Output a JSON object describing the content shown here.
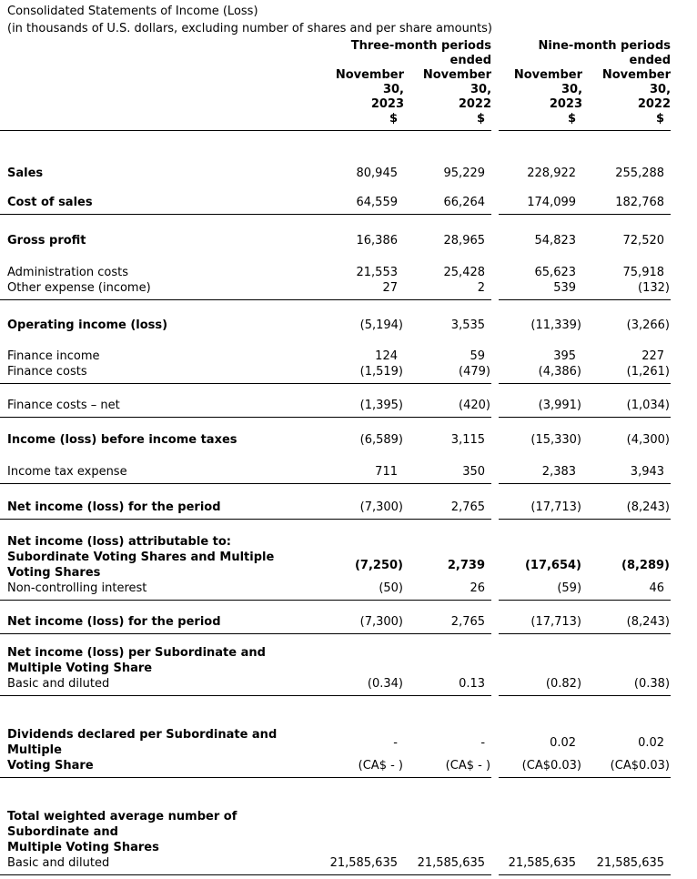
{
  "title": "Consolidated Statements of Income (Loss)",
  "subtitle": "(in thousands of U.S. dollars, excluding number of shares and per share amounts)",
  "colors": {
    "text": "#000000",
    "background": "#ffffff",
    "rule": "#000000"
  },
  "table": {
    "header": {
      "group_left_lines": [
        "Three-month periods",
        "ended"
      ],
      "group_right_lines": [
        "Nine-month periods",
        "ended"
      ],
      "columns": [
        {
          "lines": [
            "November",
            "30,",
            "2023"
          ],
          "currency": "$"
        },
        {
          "lines": [
            "November",
            "30,",
            "2022"
          ],
          "currency": "$"
        },
        {
          "lines": [
            "November",
            "30,",
            "2023"
          ],
          "currency": "$"
        },
        {
          "lines": [
            "November",
            "30,",
            "2022"
          ],
          "currency": "$"
        }
      ]
    },
    "rows": [
      {
        "label_lines": [
          "Sales"
        ],
        "bold": true,
        "values": [
          "80,945",
          "95,229",
          "228,922",
          "255,288"
        ],
        "values_bold": false,
        "underline": false,
        "gap": 38
      },
      {
        "label_lines": [
          "Cost of sales"
        ],
        "bold": true,
        "values": [
          "64,559",
          "66,264",
          "174,099",
          "182,768"
        ],
        "values_bold": false,
        "underline": true,
        "gap": 15
      },
      {
        "label_lines": [
          "Gross profit"
        ],
        "bold": true,
        "values": [
          "16,386",
          "28,965",
          "54,823",
          "72,520"
        ],
        "values_bold": false,
        "underline": false,
        "gap": 20
      },
      {
        "label_lines": [
          "Administration costs"
        ],
        "bold": false,
        "values": [
          "21,553",
          "25,428",
          "65,623",
          "75,918"
        ],
        "values_bold": false,
        "underline": false,
        "gap": 18
      },
      {
        "label_lines": [
          "Other expense (income)"
        ],
        "bold": false,
        "values": [
          "27",
          "2",
          "539",
          "(132)"
        ],
        "values_bold": false,
        "underline": true,
        "gap": 0
      },
      {
        "label_lines": [
          "Operating income (loss)"
        ],
        "bold": true,
        "values": [
          "(5,194)",
          "3,535",
          "(11,339)",
          "(3,266)"
        ],
        "values_bold": false,
        "underline": false,
        "gap": 19
      },
      {
        "label_lines": [
          "Finance income"
        ],
        "bold": false,
        "values": [
          "124",
          "59",
          "395",
          "227"
        ],
        "values_bold": false,
        "underline": false,
        "gap": 17
      },
      {
        "label_lines": [
          "Finance costs"
        ],
        "bold": false,
        "values": [
          "(1,519)",
          "(479)",
          "(4,386)",
          "(1,261)"
        ],
        "values_bold": false,
        "underline": true,
        "gap": 0
      },
      {
        "label_lines": [
          "Finance costs – net"
        ],
        "bold": false,
        "values": [
          "(1,395)",
          "(420)",
          "(3,991)",
          "(1,034)"
        ],
        "values_bold": false,
        "underline": true,
        "gap": 15
      },
      {
        "label_lines": [
          "Income (loss) before income taxes"
        ],
        "bold": true,
        "values": [
          "(6,589)",
          "3,115",
          "(15,330)",
          "(4,300)"
        ],
        "values_bold": false,
        "underline": false,
        "gap": 16
      },
      {
        "label_lines": [
          "Income tax expense"
        ],
        "bold": false,
        "values": [
          "711",
          "350",
          "2,383",
          "3,943"
        ],
        "values_bold": false,
        "underline": true,
        "gap": 18
      },
      {
        "label_lines": [
          "Net income (loss) for the period"
        ],
        "bold": true,
        "values": [
          "(7,300)",
          "2,765",
          "(17,713)",
          "(8,243)"
        ],
        "values_bold": false,
        "underline": true,
        "gap": 17
      },
      {
        "label_lines": [
          "Net income (loss) attributable to:"
        ],
        "bold": true,
        "values": [
          "",
          "",
          "",
          ""
        ],
        "values_bold": false,
        "underline": false,
        "gap": 16
      },
      {
        "label_lines": [
          "Subordinate Voting Shares and Multiple",
          "Voting Shares"
        ],
        "bold": true,
        "values": [
          "(7,250)",
          "2,739",
          "(17,654)",
          "(8,289)"
        ],
        "values_bold": true,
        "underline": false,
        "gap": 0
      },
      {
        "label_lines": [
          "Non-controlling interest"
        ],
        "bold": false,
        "values": [
          "(50)",
          "26",
          "(59)",
          "46"
        ],
        "values_bold": false,
        "underline": true,
        "gap": 0
      },
      {
        "label_lines": [
          "Net income (loss) for the period"
        ],
        "bold": true,
        "values": [
          "(7,300)",
          "2,765",
          "(17,713)",
          "(8,243)"
        ],
        "values_bold": false,
        "underline": true,
        "gap": 15
      },
      {
        "label_lines": [
          "Net income (loss) per Subordinate and",
          "Multiple Voting Share"
        ],
        "bold": true,
        "values": [
          "",
          "",
          "",
          ""
        ],
        "values_bold": false,
        "underline": false,
        "gap": 12
      },
      {
        "label_lines": [
          "Basic and diluted"
        ],
        "bold": false,
        "values": [
          "(0.34)",
          "0.13",
          "(0.82)",
          "(0.38)"
        ],
        "values_bold": false,
        "underline": true,
        "gap": 0
      },
      {
        "label_lines": [
          "Dividends declared per Subordinate and",
          "Multiple"
        ],
        "bold": true,
        "values": [
          "-",
          "-",
          "0.02",
          "0.02"
        ],
        "values_bold": false,
        "underline": false,
        "gap": 34
      },
      {
        "label_lines": [
          "Voting Share"
        ],
        "bold": true,
        "values": [
          "(CA$ - )",
          "(CA$ - )",
          "(CA$0.03)",
          "(CA$0.03)"
        ],
        "values_bold": false,
        "underline": true,
        "gap": 0
      },
      {
        "label_lines": [
          "Total weighted average number of",
          "Subordinate and",
          "Multiple Voting Shares"
        ],
        "bold": true,
        "values": [
          "",
          "",
          "",
          ""
        ],
        "values_bold": false,
        "underline": false,
        "gap": 34
      },
      {
        "label_lines": [
          "Basic and diluted"
        ],
        "bold": false,
        "values": [
          "21,585,635",
          "21,585,635",
          "21,585,635",
          "21,585,635"
        ],
        "values_bold": false,
        "underline": true,
        "gap": 0
      }
    ]
  }
}
